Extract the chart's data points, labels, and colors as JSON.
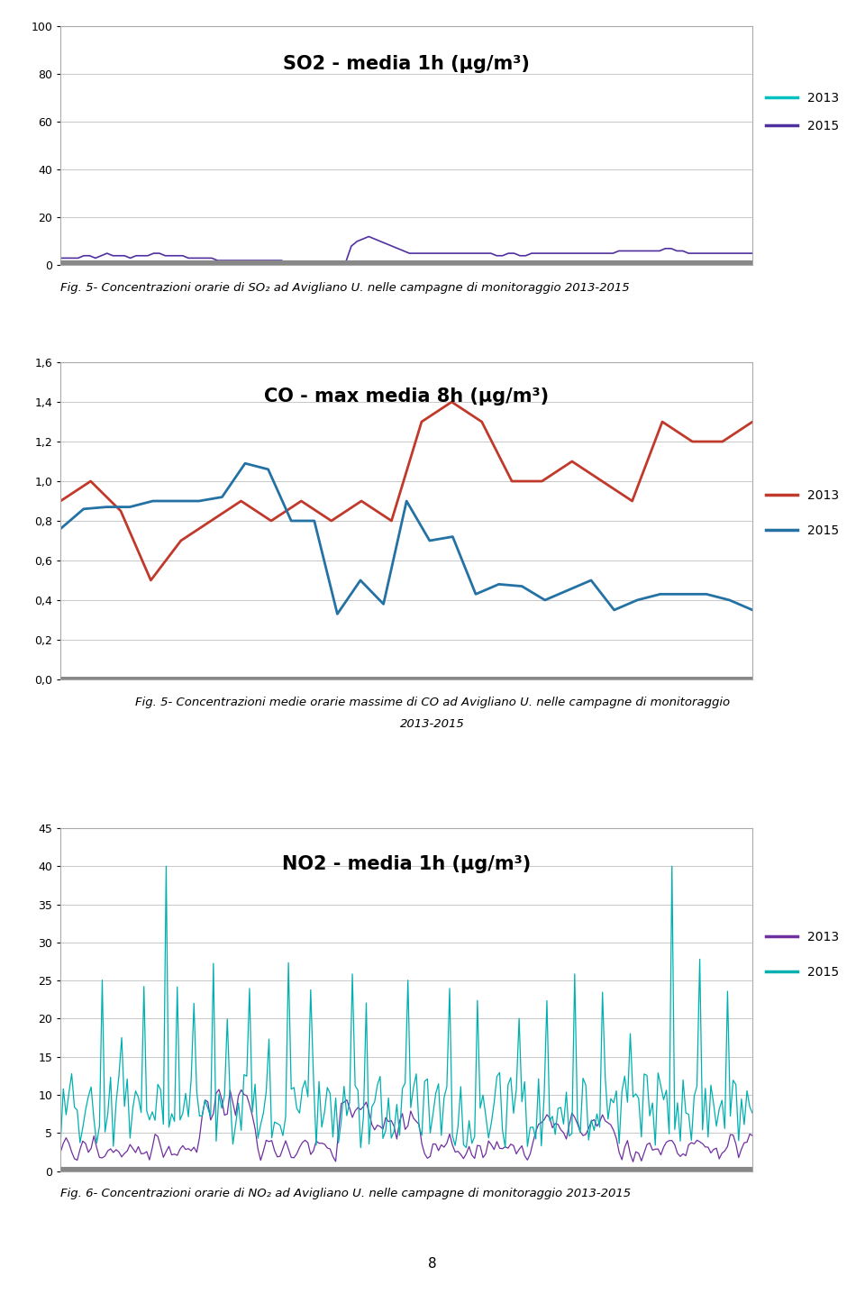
{
  "fig_width": 9.6,
  "fig_height": 14.36,
  "background_color": "#ffffff",
  "chart1": {
    "title": "SO2 - media 1h (μg/m³)",
    "ylim": [
      0,
      100
    ],
    "yticks": [
      0,
      20,
      40,
      60,
      80,
      100
    ],
    "color_2013": "#00c0c0",
    "color_2015": "#5030a0",
    "n_points": 120,
    "so2_2013": [
      0.4,
      0.5,
      0.3,
      0.4,
      0.5,
      0.3,
      0.4,
      0.5,
      0.4,
      0.4,
      0.5,
      0.4,
      0.5,
      0.5,
      0.4,
      0.4,
      0.3,
      0.4,
      0.3,
      0.3,
      0.3,
      0.4,
      0.4,
      0.3,
      0.3,
      0.3,
      0.4,
      0.3,
      0.3,
      0.3,
      0.3,
      0.4,
      0.3,
      0.3,
      0.3,
      0.3,
      0.3,
      0.3,
      0.3,
      0.3,
      0.3,
      0.4,
      0.3,
      0.3,
      0.3,
      0.3,
      0.3,
      0.3,
      0.3,
      0.4,
      0.3,
      0.3,
      0.3,
      0.3,
      0.3,
      0.3,
      0.3,
      0.3,
      0.3,
      0.3,
      0.3,
      0.3,
      0.3,
      0.3,
      0.3,
      0.3,
      0.4,
      0.3,
      0.3,
      0.3,
      0.3,
      0.3,
      0.3,
      0.3,
      0.3,
      0.3,
      0.3,
      0.3,
      0.3,
      0.3,
      0.3,
      0.3,
      0.3,
      0.3,
      0.3,
      0.3,
      0.3,
      0.3,
      0.3,
      0.3,
      0.3,
      0.3,
      0.3,
      0.3,
      0.3,
      0.3,
      0.3,
      0.3,
      0.3,
      0.3,
      0.3,
      0.3,
      0.3,
      0.3,
      0.3,
      0.3,
      0.3,
      0.3,
      0.3,
      0.3,
      0.3,
      0.3,
      0.3,
      0.3,
      0.3,
      0.3,
      0.3,
      0.3,
      0.3,
      0.3
    ],
    "so2_2015": [
      3,
      3,
      3,
      3,
      4,
      4,
      3,
      4,
      5,
      4,
      4,
      4,
      3,
      4,
      4,
      4,
      5,
      5,
      4,
      4,
      4,
      4,
      3,
      3,
      3,
      3,
      3,
      2,
      2,
      2,
      2,
      2,
      2,
      2,
      2,
      2,
      2,
      2,
      2,
      1,
      1,
      1,
      1,
      1,
      1,
      1,
      1,
      1,
      1,
      1,
      8,
      10,
      11,
      12,
      11,
      10,
      9,
      8,
      7,
      6,
      5,
      5,
      5,
      5,
      5,
      5,
      5,
      5,
      5,
      5,
      5,
      5,
      5,
      5,
      5,
      4,
      4,
      5,
      5,
      4,
      4,
      5,
      5,
      5,
      5,
      5,
      5,
      5,
      5,
      5,
      5,
      5,
      5,
      5,
      5,
      5,
      6,
      6,
      6,
      6,
      6,
      6,
      6,
      6,
      7,
      7,
      6,
      6,
      5,
      5,
      5,
      5,
      5,
      5,
      5,
      5,
      5,
      5,
      5,
      5
    ]
  },
  "chart2": {
    "title": "CO - max media 8h (μg/m³)",
    "ylim": [
      0.0,
      1.6
    ],
    "yticks": [
      0.0,
      0.2,
      0.4,
      0.6,
      0.8,
      1.0,
      1.2,
      1.4,
      1.6
    ],
    "ytick_labels": [
      "0,0",
      "0,2",
      "0,4",
      "0,6",
      "0,8",
      "1,0",
      "1,2",
      "1,4",
      "1,6"
    ],
    "color_2013": "#c0392b",
    "color_2015": "#2471a3",
    "co_2013": [
      0.9,
      1.0,
      0.85,
      0.5,
      0.7,
      0.8,
      0.9,
      0.8,
      0.9,
      0.8,
      0.9,
      0.8,
      1.3,
      1.4,
      1.3,
      1.0,
      1.0,
      1.1,
      1.0,
      0.9,
      1.3,
      1.2,
      1.2,
      1.3
    ],
    "co_2015": [
      0.76,
      0.86,
      0.87,
      0.87,
      0.9,
      0.9,
      0.9,
      0.92,
      1.09,
      1.06,
      0.8,
      0.8,
      0.33,
      0.5,
      0.38,
      0.9,
      0.7,
      0.72,
      0.43,
      0.48,
      0.47,
      0.4,
      0.45,
      0.5,
      0.35,
      0.4,
      0.43,
      0.43,
      0.43,
      0.4,
      0.35
    ]
  },
  "chart3": {
    "title": "NO2 - media 1h (μg/m³)",
    "ylim": [
      0,
      45
    ],
    "yticks": [
      0,
      5,
      10,
      15,
      20,
      25,
      30,
      35,
      40,
      45
    ],
    "color_2013": "#7030a0",
    "color_2015": "#00b0b0"
  },
  "caption1": "Fig. 5- Concentrazioni orarie di SO₂ ad Avigliano U. nelle campagne di monitoraggio 2013-2015",
  "caption2_line1": "Fig. 5- Concentrazioni medie orarie massime di CO ad Avigliano U. nelle campagne di monitoraggio",
  "caption2_line2": "2013-2015",
  "caption3": "Fig. 6- Concentrazioni orarie di NO₂ ad Avigliano U. nelle campagne di monitoraggio 2013-2015",
  "page_number": "8"
}
